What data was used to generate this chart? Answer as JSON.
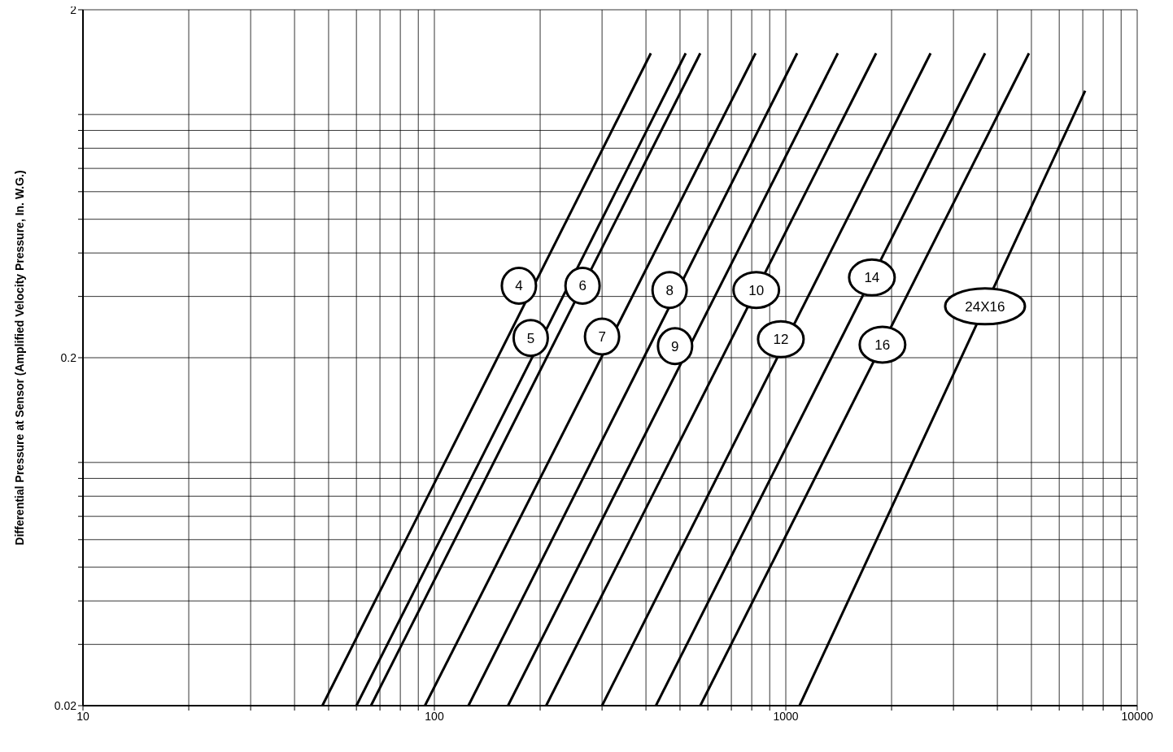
{
  "chart_data": {
    "type": "line",
    "ylabel": "Differential Pressure at Sensor (Amplified Velocity Pressure, In. W.G.)",
    "log": "xy",
    "grid": true,
    "line_style": "solid",
    "xlim": [
      10,
      10000
    ],
    "ylim": [
      0.02,
      2
    ],
    "xticks": [
      10,
      {
        "value": 20,
        "label": null
      },
      {
        "value": 30,
        "label": null
      },
      {
        "value": 40,
        "label": null
      },
      {
        "value": 50,
        "label": null
      },
      {
        "value": 60,
        "label": null
      },
      {
        "value": 70,
        "label": null
      },
      {
        "value": 80,
        "label": null
      },
      {
        "value": 90,
        "label": null
      },
      100,
      {
        "value": 200,
        "label": null
      },
      {
        "value": 300,
        "label": null
      },
      {
        "value": 400,
        "label": null
      },
      {
        "value": 500,
        "label": null
      },
      {
        "value": 600,
        "label": null
      },
      {
        "value": 700,
        "label": null
      },
      {
        "value": 800,
        "label": null
      },
      {
        "value": 900,
        "label": null
      },
      1000,
      {
        "value": 2000,
        "label": null
      },
      {
        "value": 3000,
        "label": null
      },
      {
        "value": 4000,
        "label": null
      },
      {
        "value": 5000,
        "label": null
      },
      {
        "value": 6000,
        "label": null
      },
      {
        "value": 7000,
        "label": null
      },
      {
        "value": 8000,
        "label": null
      },
      {
        "value": 9000,
        "label": null
      },
      10000
    ],
    "yticks": [
      0.02,
      {
        "value": 0.03,
        "label": null
      },
      {
        "value": 0.04,
        "label": null
      },
      {
        "value": 0.05,
        "label": null
      },
      {
        "value": 0.06,
        "label": null
      },
      {
        "value": 0.07,
        "label": null
      },
      {
        "value": 0.08,
        "label": null
      },
      {
        "value": 0.09,
        "label": null
      },
      {
        "value": 0.1,
        "label": null
      },
      0.2,
      {
        "value": 0.3,
        "label": null
      },
      {
        "value": 0.4,
        "label": null
      },
      {
        "value": 0.5,
        "label": null
      },
      {
        "value": 0.6,
        "label": null
      },
      {
        "value": 0.7,
        "label": null
      },
      {
        "value": 0.8,
        "label": null
      },
      {
        "value": 0.9,
        "label": null
      },
      {
        "value": 1,
        "label": null
      },
      2
    ],
    "series": [
      {
        "color": "#000000",
        "x": [
          48,
          413
        ],
        "values": [
          0.02,
          1.5
        ]
      },
      {
        "color": "#000000",
        "x": [
          60,
          519
        ],
        "values": [
          0.02,
          1.5
        ]
      },
      {
        "color": "#000000",
        "x": [
          66,
          571
        ],
        "values": [
          0.02,
          1.5
        ]
      },
      {
        "color": "#000000",
        "x": [
          94,
          820
        ],
        "values": [
          0.02,
          1.5
        ]
      },
      {
        "color": "#000000",
        "x": [
          125,
          1077
        ],
        "values": [
          0.02,
          1.5
        ]
      },
      {
        "color": "#000000",
        "x": [
          162,
          1406
        ],
        "values": [
          0.02,
          1.5
        ]
      },
      {
        "color": "#000000",
        "x": [
          208,
          1807
        ],
        "values": [
          0.02,
          1.5
        ]
      },
      {
        "color": "#000000",
        "x": [
          300,
          2582
        ],
        "values": [
          0.02,
          1.5
        ]
      },
      {
        "color": "#000000",
        "x": [
          427,
          3690
        ],
        "values": [
          0.02,
          1.5
        ]
      },
      {
        "color": "#000000",
        "x": [
          571,
          4920
        ],
        "values": [
          0.02,
          1.5
        ]
      },
      {
        "color": "#000000",
        "x": [
          1094,
          7110
        ],
        "values": [
          0.02,
          1.17
        ]
      }
    ],
    "annotations": [
      {
        "text": "4",
        "x": 174,
        "y": 0.322
      },
      {
        "text": "5",
        "x": 188,
        "y": 0.228
      },
      {
        "text": "6",
        "x": 264,
        "y": 0.322
      },
      {
        "text": "7",
        "x": 300,
        "y": 0.23
      },
      {
        "text": "8",
        "x": 467,
        "y": 0.313
      },
      {
        "text": "9",
        "x": 484,
        "y": 0.216
      },
      {
        "text": "10",
        "x": 824,
        "y": 0.313
      },
      {
        "text": "12",
        "x": 968,
        "y": 0.226
      },
      {
        "text": "14",
        "x": 1758,
        "y": 0.34
      },
      {
        "text": "16",
        "x": 1884,
        "y": 0.218
      },
      {
        "text": "24X16",
        "x": 3690,
        "y": 0.281
      }
    ]
  }
}
